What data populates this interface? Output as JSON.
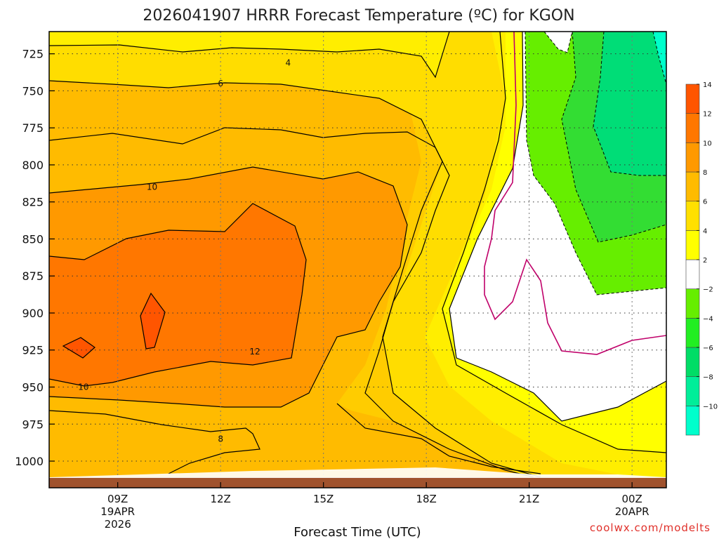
{
  "chart_data": {
    "type": "contour",
    "title": "2026041907 HRRR Forecast Temperature (ºC) for KGON",
    "xlabel": "Forecast Time (UTC)",
    "ylabel": "",
    "credit": "coolwx.com/modelts",
    "x_ticks": [
      {
        "hour": 9,
        "lines": [
          "09Z",
          "19APR",
          "2026"
        ]
      },
      {
        "hour": 12,
        "lines": [
          "12Z"
        ]
      },
      {
        "hour": 15,
        "lines": [
          "15Z"
        ]
      },
      {
        "hour": 18,
        "lines": [
          "18Z"
        ]
      },
      {
        "hour": 21,
        "lines": [
          "21Z"
        ]
      },
      {
        "hour": 24,
        "lines": [
          "00Z",
          "20APR"
        ]
      }
    ],
    "xlim": [
      7,
      25
    ],
    "y_ticks": [
      725,
      750,
      775,
      800,
      825,
      850,
      875,
      900,
      925,
      950,
      975,
      1000
    ],
    "ylim_hpa": [
      710,
      1018
    ],
    "ground_hpa": 1010,
    "colorbar": {
      "levels": [
        -10,
        -8,
        -6,
        -4,
        -2,
        2,
        4,
        6,
        8,
        10,
        12,
        14
      ],
      "labels": [
        "−10",
        "−8",
        "−6",
        "−4",
        "−2",
        "2",
        "4",
        "6",
        "8",
        "10",
        "12",
        "14"
      ],
      "colors": [
        "#00ffcc",
        "#00ee99",
        "#00dd66",
        "#22ee22",
        "#66ee00",
        "#ffffff",
        "#ffff00",
        "#ffe000",
        "#ffbb00",
        "#ff9900",
        "#ff7700",
        "#ff5500"
      ]
    },
    "fill_colors": {
      "t14": "#ff5500",
      "t12": "#ff7700",
      "t10": "#ff9900",
      "t8": "#ffbb00",
      "t6": "#ffdd00",
      "t4": "#ffe000",
      "t2": "#ffff00",
      "t0": "#ffffff",
      "tm2": "#66ee00",
      "tm4": "#22ee22",
      "tm6": "#00dd66",
      "tm8": "#00ee99",
      "tm10": "#00ffcc",
      "ground": "#a0522d",
      "zero_line": "#c0006a"
    },
    "contour_labels": [
      {
        "text": "4",
        "hour": 13.97,
        "hpa": 731
      },
      {
        "text": "6",
        "hour": 12.0,
        "hpa": 745
      },
      {
        "text": "10",
        "hour": 10.0,
        "hpa": 815
      },
      {
        "text": "12",
        "hour": 13.0,
        "hpa": 926
      },
      {
        "text": "10",
        "hour": 8.0,
        "hpa": 950
      },
      {
        "text": "8",
        "hour": 12.0,
        "hpa": 985
      }
    ]
  }
}
